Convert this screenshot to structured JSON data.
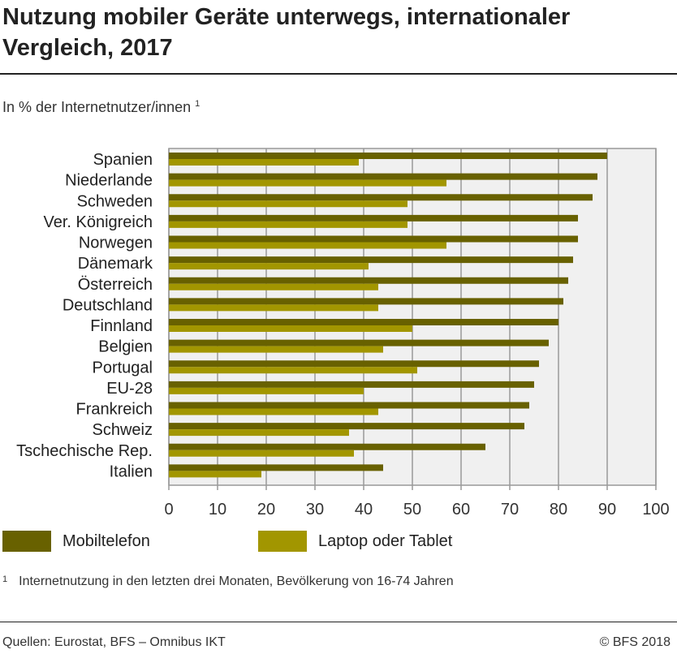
{
  "title": "Nutzung mobiler Geräte unterwegs, internationaler Vergleich, 2017",
  "subtitle": "In % der Internetnutzer/innen",
  "subtitle_note": "1",
  "footnote": {
    "marker": "1",
    "text": "Internetnutzung in den letzten drei Monaten, Bevölkerung von 16-74 Jahren"
  },
  "source": "Quellen: Eurostat, BFS – Omnibus IKT",
  "copyright": "© BFS 2018",
  "chart_data": {
    "type": "bar",
    "orientation": "horizontal",
    "categories": [
      "Spanien",
      "Niederlande",
      "Schweden",
      "Ver. Königreich",
      "Norwegen",
      "Dänemark",
      "Österreich",
      "Deutschland",
      "Finnland",
      "Belgien",
      "Portugal",
      "EU-28",
      "Frankreich",
      "Schweiz",
      "Tschechische Rep.",
      "Italien"
    ],
    "series": [
      {
        "name": "Mobiltelefon",
        "color": "#686100",
        "values": [
          90,
          88,
          87,
          84,
          84,
          83,
          82,
          81,
          80,
          78,
          76,
          75,
          74,
          73,
          65,
          44
        ]
      },
      {
        "name": "Laptop oder Tablet",
        "color": "#a29600",
        "values": [
          39,
          57,
          49,
          49,
          57,
          41,
          43,
          43,
          50,
          44,
          51,
          40,
          43,
          37,
          38,
          19
        ]
      }
    ],
    "xlim": [
      0,
      100
    ],
    "xticks": [
      0,
      10,
      20,
      30,
      40,
      50,
      60,
      70,
      80,
      90,
      100
    ],
    "grid": true,
    "legend_position": "bottom"
  }
}
